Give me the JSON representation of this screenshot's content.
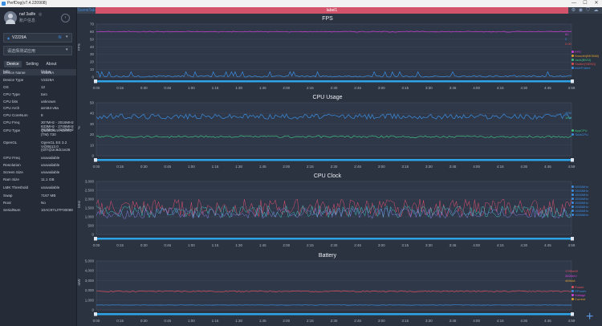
{
  "window": {
    "title": "PerfDog(v7.4.220908)",
    "controls": [
      "—",
      "☐",
      "✕"
    ]
  },
  "user": {
    "name": "naf 3ailfe",
    "sub": "账户信息"
  },
  "device_select": {
    "name": "V2229A"
  },
  "app_select": {
    "placeholder": "请选择测试应用"
  },
  "tabs": [
    "Device",
    "Setting",
    "About"
  ],
  "info": {
    "header": {
      "key": "Info",
      "value": "Value"
    },
    "rows": [
      {
        "k": "Device Name",
        "v": [
          "V2229A"
        ]
      },
      {
        "k": "Device Type",
        "v": [
          "V2229A"
        ]
      },
      {
        "k": "OS",
        "v": [
          "12"
        ]
      },
      {
        "k": "CPU Type",
        "v": [
          "taro"
        ]
      },
      {
        "k": "CPU bits",
        "v": [
          "unknown"
        ]
      },
      {
        "k": "CPU Arch",
        "v": [
          "arm64-v8a"
        ]
      },
      {
        "k": "CPU CoreNum",
        "v": [
          "8"
        ]
      },
      {
        "k": "CPU Freq",
        "v": [
          "307MHz - 2016MHz",
          "633MHz - 2745MHz",
          "787MHz - 3187MHz"
        ]
      },
      {
        "k": "GPU Type",
        "v": [
          "Qualcomm Adreno",
          "(TM) 730"
        ]
      },
      {
        "k": "OpenGL",
        "v": [
          "OpenGL ES 3.2",
          "V@0613.0",
          "(GIT@2c9dc1e26"
        ]
      },
      {
        "k": "GPU Freq",
        "v": [
          "unavailable"
        ]
      },
      {
        "k": "Resolution",
        "v": [
          "unavailable"
        ]
      },
      {
        "k": "Screen Size",
        "v": [
          "unavailable"
        ]
      },
      {
        "k": "Ram Size",
        "v": [
          "11.1 GB"
        ]
      },
      {
        "k": "LMK Threshold",
        "v": [
          "unavailable"
        ]
      },
      {
        "k": "Swap",
        "v": [
          "7167 MB"
        ]
      },
      {
        "k": "Root",
        "v": [
          "No"
        ]
      },
      {
        "k": "SerialNum",
        "v": [
          "10AC971JTF00088"
        ]
      }
    ]
  },
  "topbar": {
    "scene": "SceneTab",
    "label": "label1"
  },
  "colors": {
    "accent": "#3b8de0",
    "label_tab": "#d2536a"
  },
  "chart_data": [
    {
      "type": "line",
      "title": "FPS",
      "ylabel": "FPS",
      "ylim": [
        0,
        70
      ],
      "yticks": [
        "70",
        "60",
        "50",
        "40",
        "30",
        "20",
        "10",
        "0"
      ],
      "x_ticks": [
        "0:00",
        "0:15",
        "0:30",
        "0:45",
        "1:00",
        "1:15",
        "1:30",
        "1:45",
        "2:00",
        "2:15",
        "2:30",
        "2:45",
        "3:00",
        "3:15",
        "3:30",
        "3:45",
        "4:00",
        "4:15",
        "4:30",
        "4:45",
        "4:59"
      ],
      "series": [
        {
          "name": "FPS",
          "color": "#d040d8",
          "base": 60,
          "noise": 0.6
        },
        {
          "name": "Jank",
          "color": "#3b8de0",
          "base": 1,
          "noise": 1.2
        }
      ],
      "legend": [
        "FPS",
        "Smooth(BKSI88)",
        "Jank(BKSI)",
        "Stutter(%ENS)",
        "InterFrame"
      ],
      "legend_colors": [
        "#d040d8",
        "#e0a030",
        "#40c080",
        "#e05050",
        "#3b8de0"
      ],
      "side_values": [
        "60",
        "0",
        "0.00"
      ],
      "side_colors": [
        "#d040d8",
        "#3b8de0",
        "#e05050"
      ]
    },
    {
      "type": "line",
      "title": "CPU Usage",
      "ylabel": "%",
      "ylim": [
        0,
        50
      ],
      "yticks": [
        "50",
        "40",
        "30",
        "20",
        "10",
        "0"
      ],
      "x_ticks": [
        "0:00",
        "0:15",
        "0:30",
        "0:45",
        "1:00",
        "1:15",
        "1:30",
        "1:45",
        "2:00",
        "2:15",
        "2:30",
        "2:45",
        "3:00",
        "3:15",
        "3:30",
        "3:45",
        "4:00",
        "4:15",
        "4:30",
        "4:45",
        "4:59"
      ],
      "series": [
        {
          "name": "AppCPU",
          "color": "#3b8de0",
          "base": 37,
          "noise": 2.5
        },
        {
          "name": "TotalCPU",
          "color": "#40c080",
          "base": 18,
          "noise": 1.0
        }
      ],
      "legend": [
        "AppCPU",
        "TotalCPU"
      ],
      "legend_colors": [
        "#40c080",
        "#3b8de0"
      ],
      "side_values": [
        "40%",
        "18%"
      ],
      "side_colors": [
        "#3b8de0",
        "#40c080"
      ]
    },
    {
      "type": "line",
      "title": "CPU Clock",
      "ylabel": "MHz",
      "ylim": [
        0,
        3000
      ],
      "yticks": [
        "3,000",
        "2,500",
        "2,000",
        "1,500",
        "1,000",
        "500",
        "0"
      ],
      "x_ticks": [
        "0:00",
        "0:15",
        "0:30",
        "0:45",
        "1:00",
        "1:15",
        "1:30",
        "1:45",
        "2:00",
        "2:15",
        "2:30",
        "2:45",
        "3:00",
        "3:15",
        "3:30",
        "3:45",
        "4:00",
        "4:15",
        "4:30",
        "4:45",
        "4:59"
      ],
      "series": [
        {
          "name": "CPU0",
          "color": "#e05070",
          "base": 1500,
          "noise": 500
        },
        {
          "name": "CPU4",
          "color": "#40c0c0",
          "base": 1300,
          "noise": 350
        },
        {
          "name": "CPU7",
          "color": "#8080e0",
          "base": 1200,
          "noise": 300
        }
      ],
      "legend": [
        "1500MHz",
        "1500MHz",
        "1500MHz",
        "1500MHz",
        "1555MHz",
        "1555MHz",
        "1555MHz",
        "1555MHz"
      ],
      "legend_colors": [
        "#3b8de0",
        "#3b8de0",
        "#3b8de0",
        "#3b8de0",
        "#3b8de0",
        "#3b8de0",
        "#3b8de0",
        "#3b8de0"
      ],
      "side_values": [],
      "side_colors": []
    },
    {
      "type": "line",
      "title": "Battery",
      "ylabel": "mW",
      "ylim": [
        0,
        5000
      ],
      "yticks": [
        "5,000",
        "4,000",
        "3,000",
        "2,000",
        "1,000",
        "0"
      ],
      "x_ticks": [
        "0:00",
        "0:15",
        "0:30",
        "0:45",
        "1:00",
        "1:15",
        "1:30",
        "1:45",
        "2:00",
        "2:15",
        "2:30",
        "2:45",
        "3:00",
        "3:15",
        "3:30",
        "3:45",
        "4:00",
        "4:15",
        "4:30",
        "4:45",
        "4:59"
      ],
      "series": [
        {
          "name": "Power",
          "color": "#e05060",
          "base": 1900,
          "noise": 60
        },
        {
          "name": "Current",
          "color": "#3b8de0",
          "base": 500,
          "noise": 20
        }
      ],
      "legend": [
        "Power",
        "RPower",
        "Voltage",
        "Current"
      ],
      "legend_colors": [
        "#e05060",
        "#3b8de0",
        "#d040d8",
        "#e0a030"
      ],
      "side_values": [
        "1795mW",
        "3826mV",
        "469mA"
      ],
      "side_colors": [
        "#e05060",
        "#d040d8",
        "#e0a030"
      ]
    }
  ]
}
